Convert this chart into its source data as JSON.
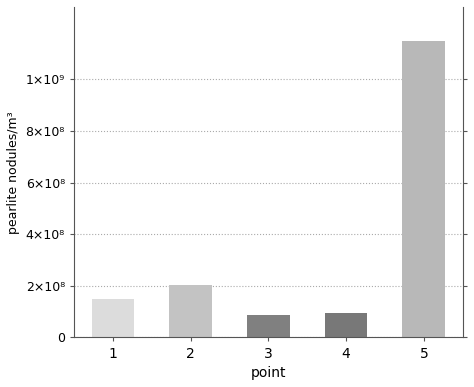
{
  "categories": [
    "1",
    "2",
    "3",
    "4",
    "5"
  ],
  "values": [
    148000000.0,
    205000000.0,
    88000000.0,
    95000000.0,
    1150000000.0
  ],
  "bar_colors": [
    "#dcdcdc",
    "#c3c3c3",
    "#808080",
    "#787878",
    "#b8b8b8"
  ],
  "xlabel": "point",
  "ylabel": "pearlite nodules/m³",
  "ylim": [
    0,
    1280000000.0
  ],
  "yticks": [
    0,
    200000000.0,
    400000000.0,
    600000000.0,
    800000000.0,
    1000000000.0
  ],
  "ytick_labels": [
    "0",
    "2×10⁸",
    "4×10⁸",
    "6×10⁸",
    "8×10⁸",
    "1×10⁹"
  ],
  "grid_color": "#aaaaaa",
  "background_color": "#ffffff",
  "bar_width": 0.55,
  "spine_color": "#555555",
  "tick_fontsize": 9,
  "label_fontsize": 9
}
